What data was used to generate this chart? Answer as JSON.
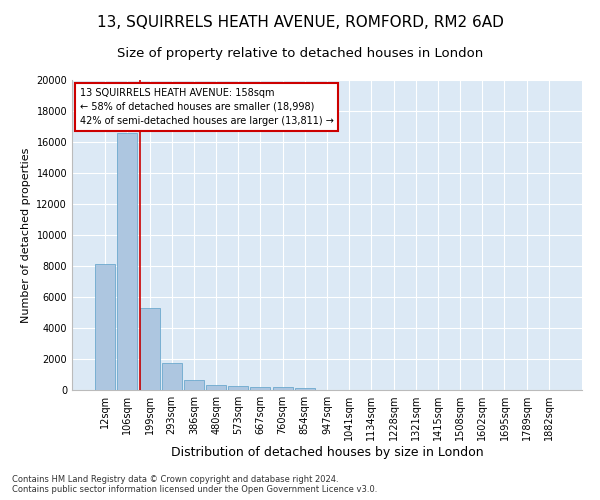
{
  "title": "13, SQUIRRELS HEATH AVENUE, ROMFORD, RM2 6AD",
  "subtitle": "Size of property relative to detached houses in London",
  "xlabel": "Distribution of detached houses by size in London",
  "ylabel": "Number of detached properties",
  "categories": [
    "12sqm",
    "106sqm",
    "199sqm",
    "293sqm",
    "386sqm",
    "480sqm",
    "573sqm",
    "667sqm",
    "760sqm",
    "854sqm",
    "947sqm",
    "1041sqm",
    "1134sqm",
    "1228sqm",
    "1321sqm",
    "1415sqm",
    "1508sqm",
    "1602sqm",
    "1695sqm",
    "1789sqm",
    "1882sqm"
  ],
  "values": [
    8100,
    16600,
    5300,
    1750,
    650,
    350,
    280,
    200,
    175,
    150,
    0,
    0,
    0,
    0,
    0,
    0,
    0,
    0,
    0,
    0,
    0
  ],
  "bar_color": "#adc6e0",
  "bar_edge_color": "#5a9fc8",
  "annotation_text": "13 SQUIRRELS HEATH AVENUE: 158sqm\n← 58% of detached houses are smaller (18,998)\n42% of semi-detached houses are larger (13,811) →",
  "annotation_box_color": "#ffffff",
  "annotation_box_edge_color": "#cc0000",
  "property_line_color": "#cc0000",
  "ylim": [
    0,
    20000
  ],
  "yticks": [
    0,
    2000,
    4000,
    6000,
    8000,
    10000,
    12000,
    14000,
    16000,
    18000,
    20000
  ],
  "background_color": "#dce9f5",
  "footer_line1": "Contains HM Land Registry data © Crown copyright and database right 2024.",
  "footer_line2": "Contains public sector information licensed under the Open Government Licence v3.0.",
  "title_fontsize": 11,
  "subtitle_fontsize": 9.5,
  "xlabel_fontsize": 9,
  "ylabel_fontsize": 8,
  "annotation_fontsize": 7,
  "tick_fontsize": 7,
  "footer_fontsize": 6
}
